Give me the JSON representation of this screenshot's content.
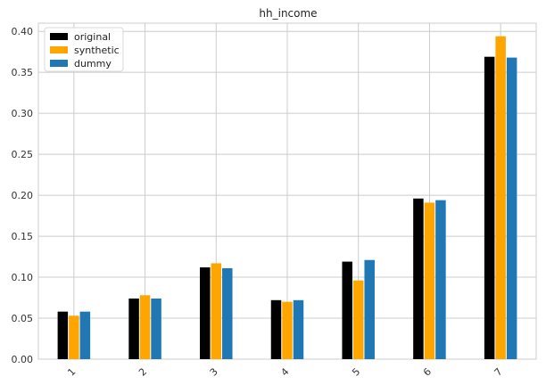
{
  "chart_data": {
    "type": "bar",
    "title": "hh_income",
    "xlabel": "",
    "ylabel": "",
    "categories": [
      "1",
      "2",
      "3",
      "4",
      "5",
      "6",
      "7"
    ],
    "series": [
      {
        "name": "original",
        "color": "#000000",
        "values": [
          0.058,
          0.074,
          0.112,
          0.072,
          0.119,
          0.196,
          0.369
        ]
      },
      {
        "name": "synthetic",
        "color": "#FFA500",
        "values": [
          0.053,
          0.078,
          0.117,
          0.07,
          0.096,
          0.191,
          0.394
        ]
      },
      {
        "name": "dummy",
        "color": "#1F77B4",
        "values": [
          0.058,
          0.074,
          0.111,
          0.072,
          0.121,
          0.194,
          0.368
        ]
      }
    ],
    "ylim": [
      0,
      0.41
    ],
    "yticks": [
      "0.00",
      "0.05",
      "0.10",
      "0.15",
      "0.20",
      "0.25",
      "0.30",
      "0.35",
      "0.40"
    ],
    "grid": true,
    "legend_position": "top-left",
    "tick_label_rotation_x": "45deg"
  }
}
